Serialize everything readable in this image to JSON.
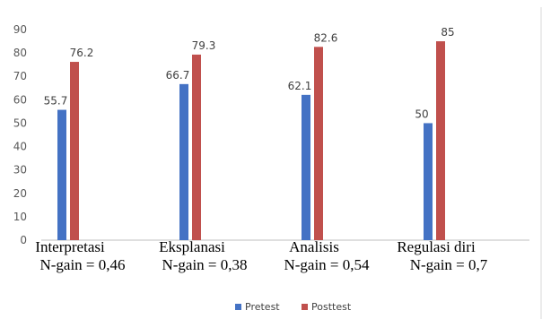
{
  "chart_data": {
    "type": "bar",
    "categories": [
      [
        "Interpretasi",
        "N-gain = 0,46"
      ],
      [
        "Eksplanasi",
        "N-gain = 0,38"
      ],
      [
        "Analisis",
        "N-gain = 0,54"
      ],
      [
        "Regulasi diri",
        "N-gain = 0,7"
      ]
    ],
    "series": [
      {
        "name": "Pretest",
        "values": [
          55.7,
          66.7,
          62.1,
          50
        ],
        "labels": [
          "55.7",
          "66.7",
          "62.1",
          "50"
        ],
        "color": "#4472C4"
      },
      {
        "name": "Posttest",
        "values": [
          76.2,
          79.3,
          82.6,
          85
        ],
        "labels": [
          "76.2",
          "79.3",
          "82.6",
          "85"
        ],
        "color": "#C0504D"
      }
    ],
    "ylim": [
      0,
      90
    ],
    "yticks": [
      0,
      10,
      20,
      30,
      40,
      50,
      60,
      70,
      80,
      90
    ],
    "grid": false,
    "legend": "bottom"
  }
}
